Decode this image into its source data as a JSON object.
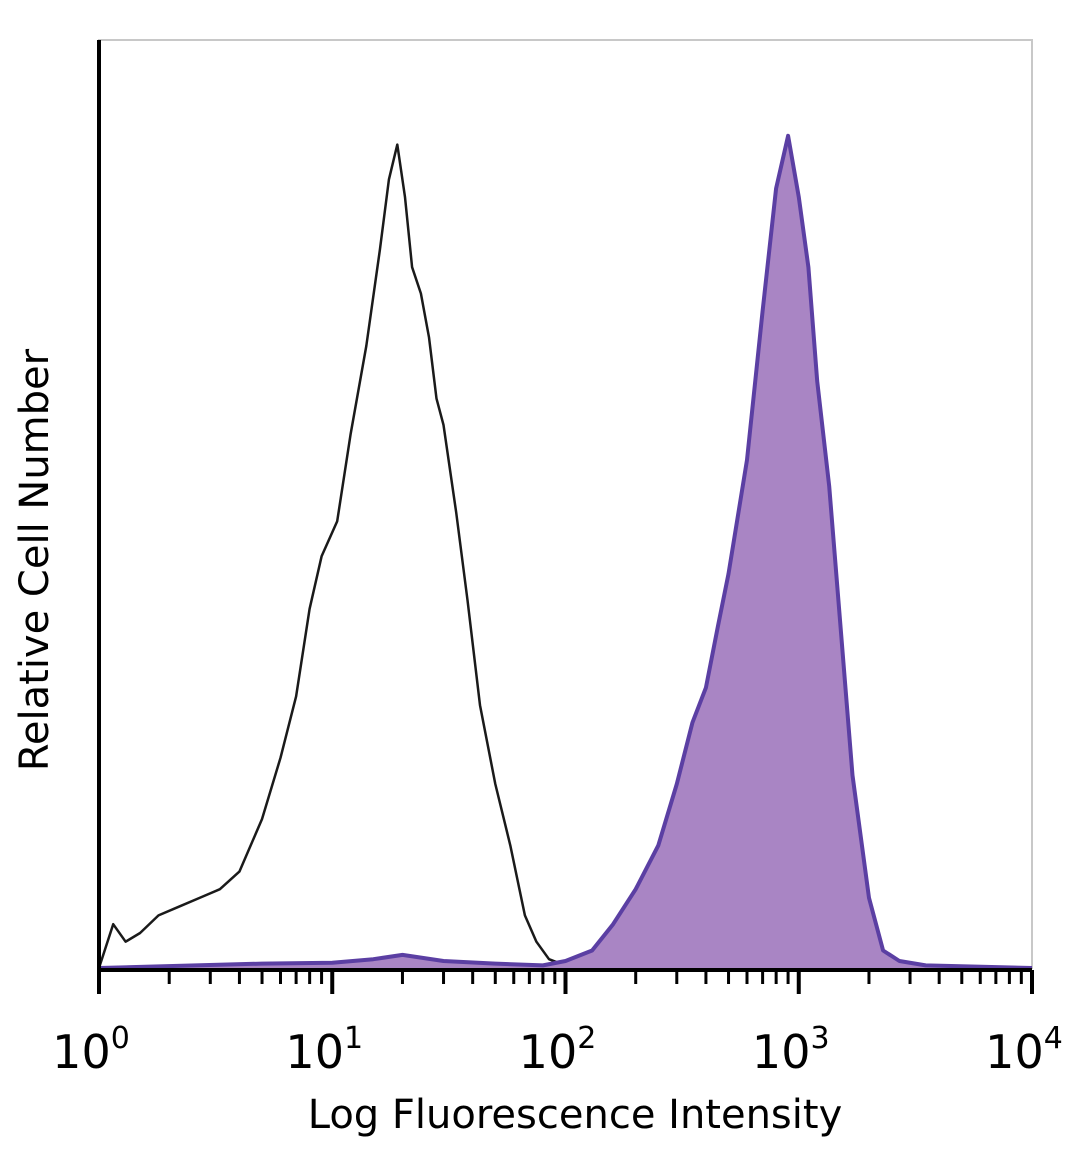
{
  "chart_data": {
    "type": "area",
    "title": "",
    "xlabel": "Log Fluorescence Intensity",
    "ylabel": "Relative Cell Number",
    "x_scale": "log",
    "xlim": [
      1,
      10000
    ],
    "ylim": [
      0,
      100
    ],
    "grid": false,
    "x_ticks": [
      {
        "base": "10",
        "exp": "0",
        "value": 1
      },
      {
        "base": "10",
        "exp": "1",
        "value": 10
      },
      {
        "base": "10",
        "exp": "2",
        "value": 100
      },
      {
        "base": "10",
        "exp": "3",
        "value": 1000
      },
      {
        "base": "10",
        "exp": "4",
        "value": 10000
      }
    ],
    "colors": {
      "control": "#1a1a1a",
      "stained_line": "#5b3fa3",
      "stained_fill": "#a985c4",
      "axis": "#000000"
    },
    "series": [
      {
        "style": "open-line",
        "x": [
          1,
          1.15,
          1.3,
          1.5,
          1.8,
          2.2,
          2.7,
          3.3,
          4.0,
          5.0,
          6.0,
          7.0,
          8.0,
          9.0,
          10.5,
          12.0,
          14.0,
          16.0,
          17.5,
          19.0,
          20.5,
          22.0,
          24.0,
          26.0,
          28.0,
          30.0,
          34.0,
          38.0,
          43.0,
          50.0,
          58.0,
          67.0,
          75.0,
          85.0,
          95.0,
          105.0,
          120.0
        ],
        "y": [
          0,
          5,
          3,
          4,
          6,
          7,
          8,
          9,
          11,
          17,
          24,
          31,
          41,
          47,
          51,
          61,
          71,
          82,
          90,
          94,
          88,
          80,
          77,
          72,
          65,
          62,
          52,
          42,
          30,
          21,
          14,
          6,
          3,
          1,
          0.5,
          0,
          0
        ]
      },
      {
        "style": "filled",
        "x": [
          1,
          5,
          10,
          15,
          20,
          30,
          50,
          80,
          100,
          130,
          160,
          200,
          250,
          300,
          350,
          400,
          450,
          500,
          600,
          700,
          800,
          900,
          1000,
          1100,
          1200,
          1350,
          1500,
          1700,
          2000,
          2300,
          2700,
          3500,
          10000
        ],
        "y": [
          0,
          0.5,
          0.6,
          1,
          1.5,
          0.8,
          0.5,
          0.3,
          0.8,
          2,
          5,
          9,
          14,
          21,
          28,
          32,
          39,
          45,
          58,
          75,
          89,
          95,
          88,
          80,
          67,
          55,
          40,
          22,
          8,
          2,
          0.8,
          0.3,
          0
        ]
      }
    ]
  }
}
